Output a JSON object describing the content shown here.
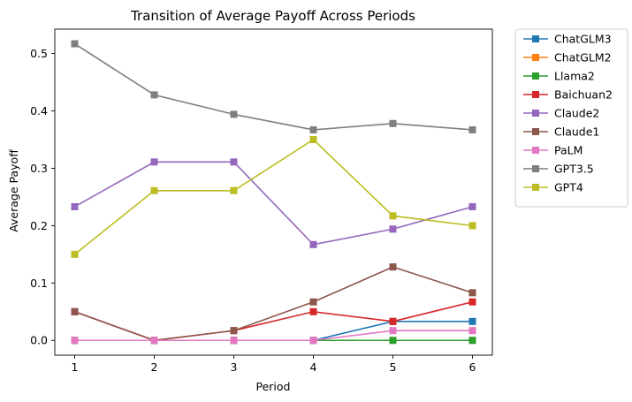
{
  "chart_data": {
    "type": "line",
    "title": "Transition of Average Payoff Across Periods",
    "xlabel": "Period",
    "ylabel": "Average Payoff",
    "x": [
      1,
      2,
      3,
      4,
      5,
      6
    ],
    "xticks": [
      "1",
      "2",
      "3",
      "4",
      "5",
      "6"
    ],
    "xlim": [
      0.75,
      6.25
    ],
    "ylim": [
      -0.0258,
      0.5425
    ],
    "yticks": [
      0.0,
      0.1,
      0.2,
      0.3,
      0.4,
      0.5
    ],
    "ytick_labels": [
      "0.0",
      "0.1",
      "0.2",
      "0.3",
      "0.4",
      "0.5"
    ],
    "grid": false,
    "legend_position": "outside-right",
    "marker": "square",
    "series": [
      {
        "name": "ChatGLM3",
        "color": "#1f77b4",
        "values": [
          0.0,
          0.0,
          0.0,
          0.0,
          0.033,
          0.033
        ]
      },
      {
        "name": "ChatGLM2",
        "color": "#ff7f0e",
        "values": [
          0.0,
          0.0,
          0.0,
          0.0,
          0.0,
          0.0
        ]
      },
      {
        "name": "Llama2",
        "color": "#2ca02c",
        "values": [
          0.0,
          0.0,
          0.0,
          0.0,
          0.0,
          0.0
        ]
      },
      {
        "name": "Baichuan2",
        "color": "#d62728",
        "values": [
          0.05,
          0.0,
          0.017,
          0.05,
          0.033,
          0.067
        ]
      },
      {
        "name": "Claude2",
        "color": "#9467bd",
        "values": [
          0.233,
          0.311,
          0.311,
          0.167,
          0.194,
          0.233
        ]
      },
      {
        "name": "Claude1",
        "color": "#8c564b",
        "values": [
          0.05,
          0.0,
          0.017,
          0.067,
          0.128,
          0.083
        ]
      },
      {
        "name": "PaLM",
        "color": "#e377c2",
        "values": [
          0.0,
          0.0,
          0.0,
          0.0,
          0.017,
          0.017
        ]
      },
      {
        "name": "GPT3.5",
        "color": "#7f7f7f",
        "values": [
          0.517,
          0.428,
          0.394,
          0.367,
          0.378,
          0.367
        ]
      },
      {
        "name": "GPT4",
        "color": "#bcbd22",
        "values": [
          0.15,
          0.261,
          0.261,
          0.35,
          0.217,
          0.2
        ]
      }
    ]
  }
}
